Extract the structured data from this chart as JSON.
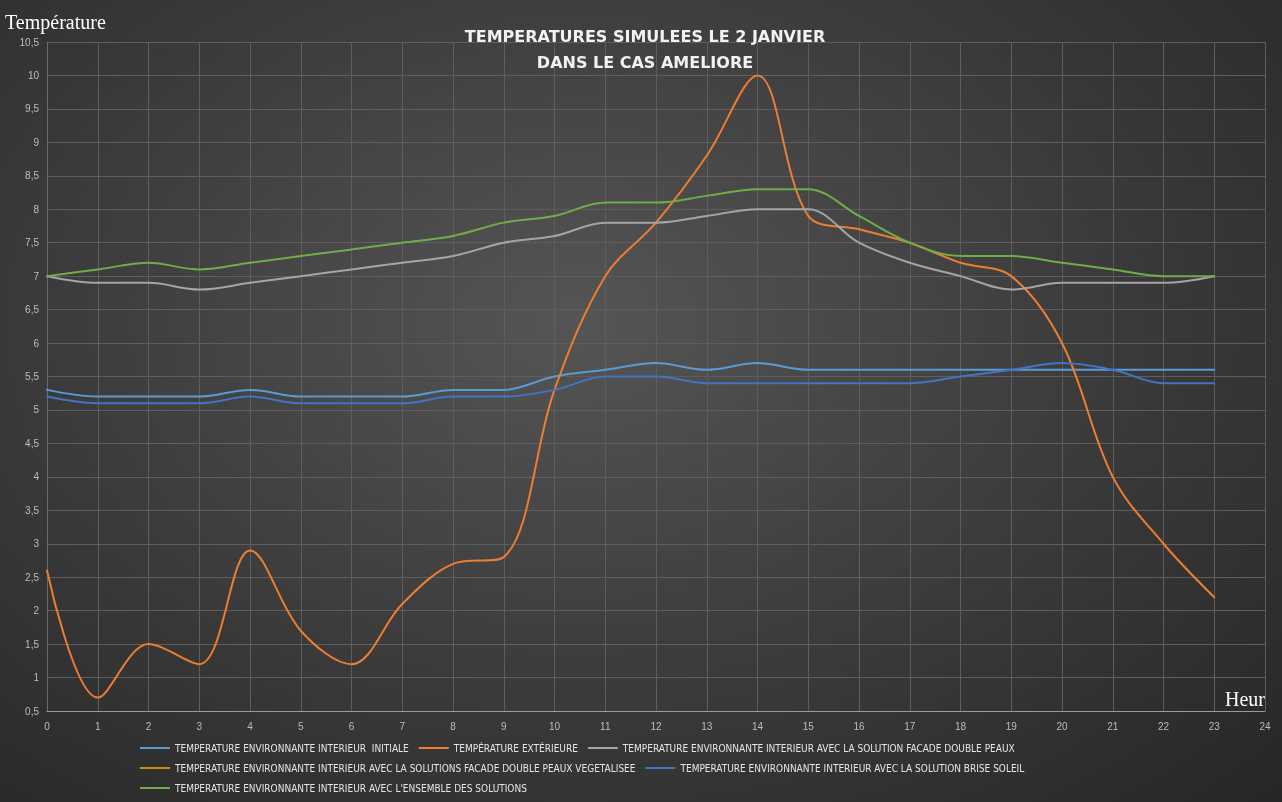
{
  "chart_data": {
    "type": "line",
    "title": "TEMPERATURES SIMULEES LE 2 JANVIER\nDANS LE CAS AMELIORE",
    "xlabel": "Heur",
    "ylabel": "Température",
    "x": [
      0,
      1,
      2,
      3,
      4,
      5,
      6,
      7,
      8,
      9,
      10,
      11,
      12,
      13,
      14,
      15,
      16,
      17,
      18,
      19,
      20,
      21,
      22,
      23
    ],
    "series": [
      {
        "name": "TEMPERATURE ENVIRONNANTE INTERIEUR  INITIALE",
        "color": "#5b9bd5",
        "values": [
          5.3,
          5.2,
          5.2,
          5.2,
          5.3,
          5.2,
          5.2,
          5.2,
          5.3,
          5.3,
          5.5,
          5.6,
          5.7,
          5.6,
          5.7,
          5.6,
          5.6,
          5.6,
          5.6,
          5.6,
          5.6,
          5.6,
          5.6,
          5.6
        ]
      },
      {
        "name": "TEMPÉRATURE EXTÉRIEURE",
        "color": "#ed7d31",
        "values": [
          2.6,
          0.7,
          1.5,
          1.2,
          2.9,
          1.7,
          1.2,
          2.1,
          2.7,
          2.8,
          5.3,
          7.0,
          7.8,
          8.8,
          10,
          7.9,
          7.7,
          7.5,
          7.2,
          7.0,
          6.0,
          4.0,
          3.0,
          2.2
        ]
      },
      {
        "name": "TEMPERATURE ENVIRONNANTE INTERIEUR AVEC LA SOLUTION FACADE DOUBLE PEAUX",
        "color": "#a5a5a5",
        "values": [
          7.0,
          6.9,
          6.9,
          6.8,
          6.9,
          7.0,
          7.1,
          7.2,
          7.3,
          7.5,
          7.6,
          7.8,
          7.8,
          7.9,
          8.0,
          8.0,
          7.5,
          7.2,
          7.0,
          6.8,
          6.9,
          6.9,
          6.9,
          7.0
        ]
      },
      {
        "name": "TEMPERATURE ENVIRONNANTE INTERIEUR AVEC LA SOLUTIONS FACADE DOUBLE PEAUX VEGETALISEE",
        "color": "#c98a1e",
        "values": [
          null,
          null,
          null,
          null,
          null,
          null,
          null,
          null,
          null,
          null,
          null,
          null,
          null,
          null,
          null,
          null,
          null,
          null,
          null,
          null,
          null,
          null,
          null,
          null
        ]
      },
      {
        "name": "TEMPERATURE ENVIRONNANTE INTERIEUR AVEC LA SOLUTION BRISE SOLEIL",
        "color": "#4472c4",
        "values": [
          5.2,
          5.1,
          5.1,
          5.1,
          5.2,
          5.1,
          5.1,
          5.1,
          5.2,
          5.2,
          5.3,
          5.5,
          5.5,
          5.4,
          5.4,
          5.4,
          5.4,
          5.4,
          5.5,
          5.6,
          5.7,
          5.6,
          5.4,
          5.4
        ]
      },
      {
        "name": "TEMPERATURE ENVIRONNANTE INTERIEUR AVEC L'ENSEMBLE DES SOLUTIONS",
        "color": "#70ad47",
        "values": [
          7.0,
          7.1,
          7.2,
          7.1,
          7.2,
          7.3,
          7.4,
          7.5,
          7.6,
          7.8,
          7.9,
          8.1,
          8.1,
          8.2,
          8.3,
          8.3,
          7.9,
          7.5,
          7.3,
          7.3,
          7.2,
          7.1,
          7.0,
          7.0
        ]
      }
    ],
    "xlim": [
      0,
      24
    ],
    "xticks": [
      0,
      1,
      2,
      3,
      4,
      5,
      6,
      7,
      8,
      9,
      10,
      11,
      12,
      13,
      14,
      15,
      16,
      17,
      18,
      19,
      20,
      21,
      22,
      23,
      24
    ],
    "ylim": [
      0.5,
      10.5
    ],
    "yticks": [
      {
        "value": 0.5,
        "label": "0,5"
      },
      1,
      {
        "value": 1.5,
        "label": "1,5"
      },
      2,
      {
        "value": 2.5,
        "label": "2,5"
      },
      3,
      {
        "value": 3.5,
        "label": "3,5"
      },
      4,
      {
        "value": 4.5,
        "label": "4,5"
      },
      5,
      {
        "value": 5.5,
        "label": "5,5"
      },
      6,
      {
        "value": 6.5,
        "label": "6,5"
      },
      7,
      {
        "value": 7.5,
        "label": "7,5"
      },
      8,
      {
        "value": 8.5,
        "label": "8,5"
      },
      9,
      {
        "value": 9.5,
        "label": "9,5"
      },
      10,
      {
        "value": 10.5,
        "label": "10,5"
      }
    ],
    "grid": true,
    "legend": "bottom",
    "marker": "none",
    "line_style": "solid"
  }
}
